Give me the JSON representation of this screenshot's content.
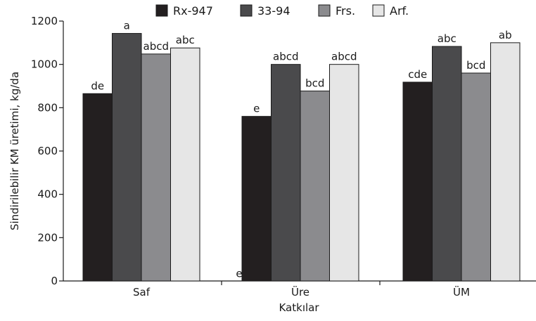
{
  "chart_data": {
    "type": "bar",
    "title": "",
    "xlabel": "Katkılar",
    "ylabel": "Sindirilebilir  KM üretimi, kg/da",
    "ylim": [
      0,
      1200
    ],
    "yticks": [
      0,
      200,
      400,
      600,
      800,
      1000,
      1200
    ],
    "categories": [
      "Saf",
      "Üre",
      "ÜM"
    ],
    "series": [
      {
        "name": "Rx-947",
        "color": "#231f20",
        "values": [
          865,
          760,
          918
        ],
        "sig_labels": [
          "de",
          "e",
          "cde"
        ]
      },
      {
        "name": "33-94",
        "color": "#4a4a4c",
        "values": [
          1143,
          1000,
          1083
        ],
        "sig_labels": [
          "a",
          "abcd",
          "abc"
        ]
      },
      {
        "name": "Frs.",
        "color": "#8b8b8e",
        "values": [
          1048,
          877,
          960
        ],
        "sig_labels": [
          "abcd",
          "bcd",
          "bcd"
        ]
      },
      {
        "name": "Arf.",
        "color": "#e6e6e6",
        "values": [
          1076,
          1000,
          1100
        ],
        "sig_labels": [
          "abc",
          "abcd",
          "ab"
        ]
      }
    ],
    "annotations": [
      {
        "text": "e",
        "category": "Üre",
        "value": 12
      }
    ],
    "legend": "top-center",
    "grid": false
  }
}
